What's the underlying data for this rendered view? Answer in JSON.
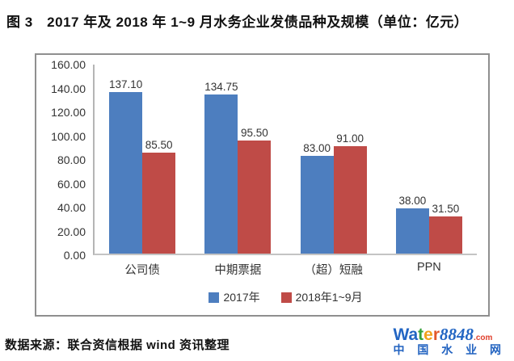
{
  "title": "图 3　2017 年及 2018 年 1~9 月水务企业发债品种及规模（单位：亿元）",
  "chart_data": {
    "type": "bar",
    "categories": [
      "公司债",
      "中期票据",
      "（超）短融",
      "PPN"
    ],
    "series": [
      {
        "name": "2017年",
        "color": "#4d7ebf",
        "values": [
          137.1,
          134.75,
          83.0,
          38.0
        ]
      },
      {
        "name": "2018年1~9月",
        "color": "#bf4b47",
        "values": [
          85.5,
          95.5,
          91.0,
          31.5
        ]
      }
    ],
    "title": "2017 年及 2018 年 1~9 月水务企业发债品种及规模",
    "unit": "亿元",
    "xlabel": "",
    "ylabel": "",
    "ylim": [
      0,
      160
    ],
    "yticks": [
      "160.00",
      "140.00",
      "120.00",
      "100.00",
      "80.00",
      "60.00",
      "40.00",
      "20.00",
      "0.00"
    ],
    "grid": false,
    "legend_position": "bottom",
    "data_labels": true
  },
  "footer": {
    "source": "数据来源：联合资信根据 wind 资讯整理"
  },
  "logo": {
    "wordmark_segments": [
      {
        "text": "Wa",
        "color": "#2265c3",
        "style": "sans"
      },
      {
        "text": "t",
        "color": "#36a23a",
        "style": "sans"
      },
      {
        "text": "e",
        "color": "#f2a11c",
        "style": "sans"
      },
      {
        "text": "r",
        "color": "#e2572b",
        "style": "sans"
      },
      {
        "text": "8848",
        "color": "#2265c3",
        "style": "num"
      },
      {
        "text": ".com",
        "color": "#e0402d",
        "style": "tld"
      }
    ],
    "tagline": "中 国 水 业 网",
    "tagline_color": "#2162c0"
  }
}
